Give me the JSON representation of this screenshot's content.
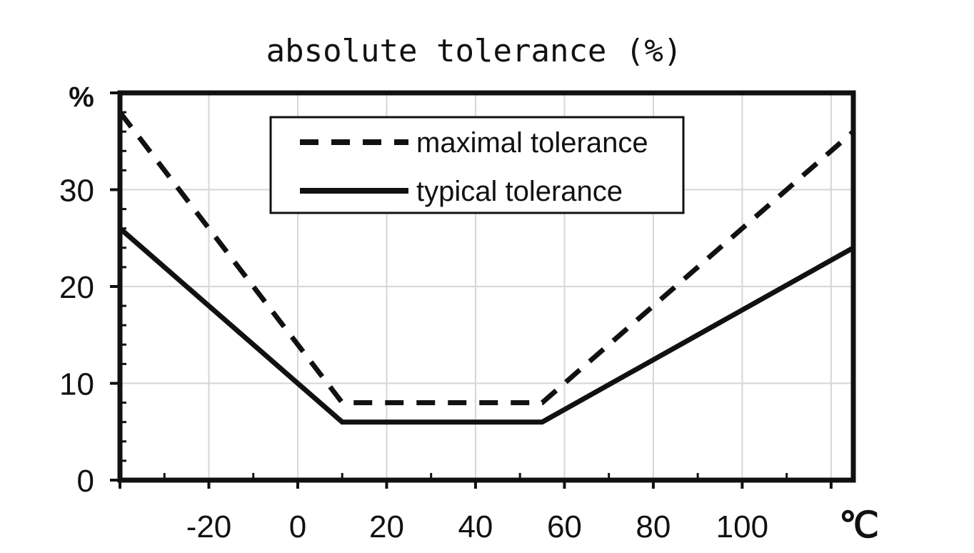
{
  "chart_data": {
    "type": "line",
    "title": "absolute tolerance (%)",
    "xlabel": "℃",
    "ylabel": "%",
    "xlim": [
      -40,
      125
    ],
    "ylim": [
      0,
      40
    ],
    "x_ticks": [
      -20,
      0,
      20,
      40,
      60,
      80,
      100
    ],
    "x_tick_labels": [
      "-20",
      "0",
      "20",
      "40",
      "60",
      "80",
      "100"
    ],
    "y_ticks": [
      0,
      10,
      20,
      30
    ],
    "y_tick_labels": [
      "0",
      "10",
      "20",
      "30"
    ],
    "grid": true,
    "legend": {
      "placement": "top-center"
    },
    "series": [
      {
        "name": "maximal tolerance",
        "style": "dashed",
        "x": [
          -40,
          10,
          55,
          125
        ],
        "y": [
          38,
          8,
          8,
          36
        ]
      },
      {
        "name": "typical tolerance",
        "style": "solid",
        "x": [
          -40,
          10,
          55,
          125
        ],
        "y": [
          26,
          6,
          6,
          24
        ]
      }
    ]
  }
}
